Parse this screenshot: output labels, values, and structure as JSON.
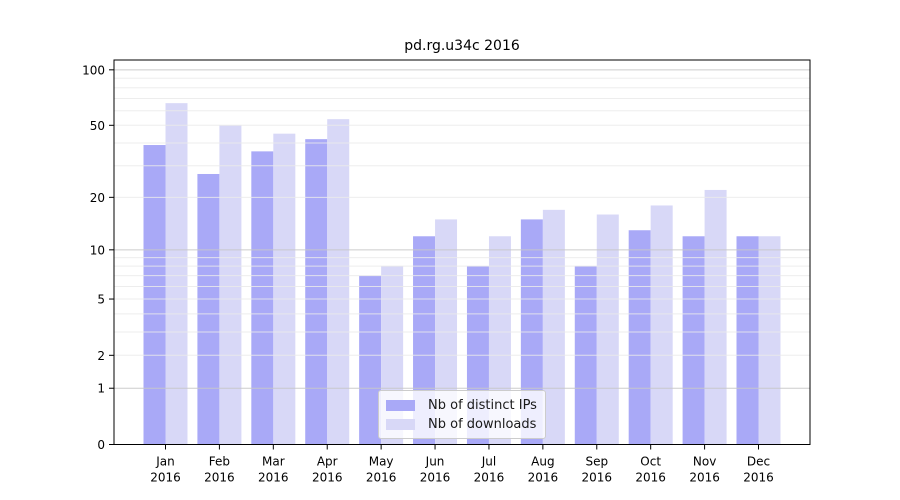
{
  "chart_data": {
    "type": "bar",
    "title": "pd.rg.u34c 2016",
    "categories": [
      "Jan",
      "Feb",
      "Mar",
      "Apr",
      "May",
      "Jun",
      "Jul",
      "Aug",
      "Sep",
      "Oct",
      "Nov",
      "Dec"
    ],
    "x_tick_year": "2016",
    "series": [
      {
        "name": "Nb of distinct IPs",
        "color": "#a9a9f7",
        "values": [
          39,
          27,
          36,
          42,
          7,
          12,
          8,
          15,
          8,
          13,
          12,
          12
        ]
      },
      {
        "name": "Nb of downloads",
        "color": "#d8d8f7",
        "values": [
          66,
          50,
          45,
          54,
          8,
          15,
          12,
          17,
          16,
          18,
          22,
          12
        ]
      }
    ],
    "yscale": "log1p",
    "ylim": [
      0,
      113
    ],
    "yticks": [
      0,
      1,
      2,
      5,
      10,
      20,
      50,
      100
    ],
    "grid": {
      "on": true,
      "major": [
        1,
        10,
        100
      ],
      "minor": [
        2,
        3,
        4,
        5,
        6,
        7,
        8,
        9,
        20,
        30,
        40,
        50,
        60,
        70,
        80,
        90
      ],
      "major_color": "#c6c6c6",
      "minor_color": "#eaeaea"
    },
    "legend": {
      "position": "lower center",
      "entries": [
        "Nb of distinct IPs",
        "Nb of downloads"
      ]
    },
    "colors": {
      "background": "#ffffff",
      "text": "#000000",
      "spine": "#000000"
    }
  }
}
